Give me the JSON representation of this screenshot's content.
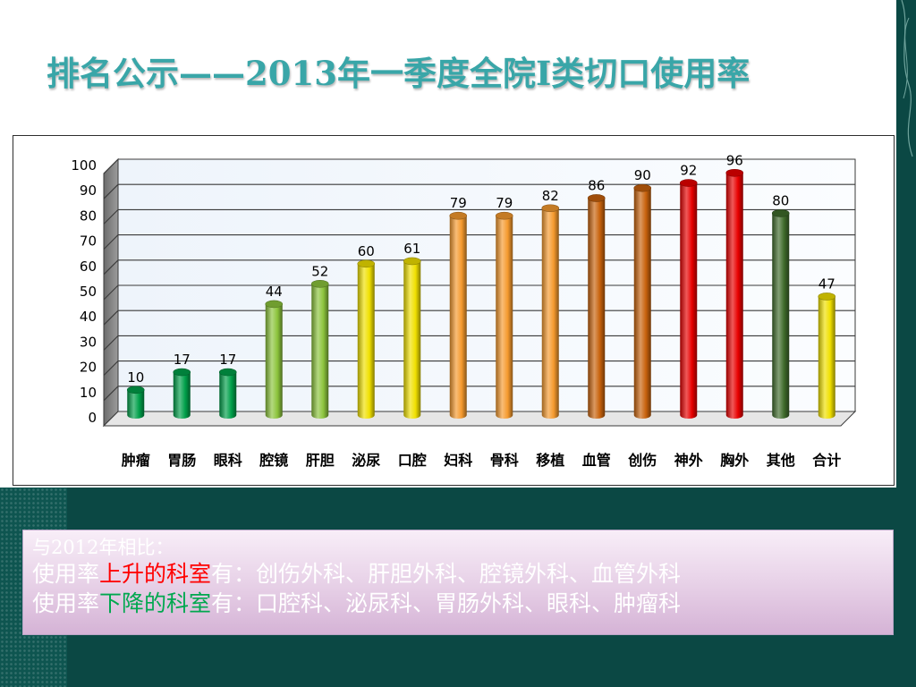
{
  "slide": {
    "title": "排名公示——2013年一季度全院I类切口使用率",
    "colors": {
      "title": "#39a6a8",
      "background_bottom": "#0b4844",
      "chart_border": "#2e2e2e"
    }
  },
  "chart_data": {
    "type": "bar",
    "style": "3d-cylinder",
    "title": "",
    "xlabel": "",
    "ylabel": "",
    "ylim": [
      0,
      100
    ],
    "yticks": [
      0,
      10,
      20,
      30,
      40,
      50,
      60,
      70,
      80,
      90,
      100
    ],
    "grid": true,
    "legend": "none",
    "categories": [
      "肿瘤",
      "胃肠",
      "眼科",
      "腔镜",
      "肝胆",
      "泌尿",
      "口腔",
      "妇科",
      "骨科",
      "移植",
      "血管",
      "创伤",
      "神外",
      "胸外",
      "其他",
      "合计"
    ],
    "values": [
      10,
      17,
      17,
      44,
      52,
      60,
      61,
      79,
      79,
      82,
      86,
      90,
      92,
      96,
      80,
      47
    ],
    "bar_colors": [
      "#00a04a",
      "#00a04a",
      "#00a04a",
      "#8cc43c",
      "#8cc43c",
      "#f0e000",
      "#f0e000",
      "#f59a2e",
      "#f59a2e",
      "#f59a2e",
      "#c8620c",
      "#c8620c",
      "#e80000",
      "#e80000",
      "#3f6b2b",
      "#f0e000"
    ]
  },
  "info": {
    "line1": "与2012年相比：",
    "line2_prefix": "使用率",
    "line2_highlight": "上升的科室",
    "line2_suffix": "有：创伤外科、肝胆外科、腔镜外科、血管外科",
    "line3_prefix": "使用率",
    "line3_highlight": "下降的科室",
    "line3_suffix": "有：口腔科、泌尿科、胃肠外科、眼科、肿瘤科",
    "colors": {
      "text": "#ffffff",
      "rise": "#ff0000",
      "fall": "#00a84f"
    }
  }
}
